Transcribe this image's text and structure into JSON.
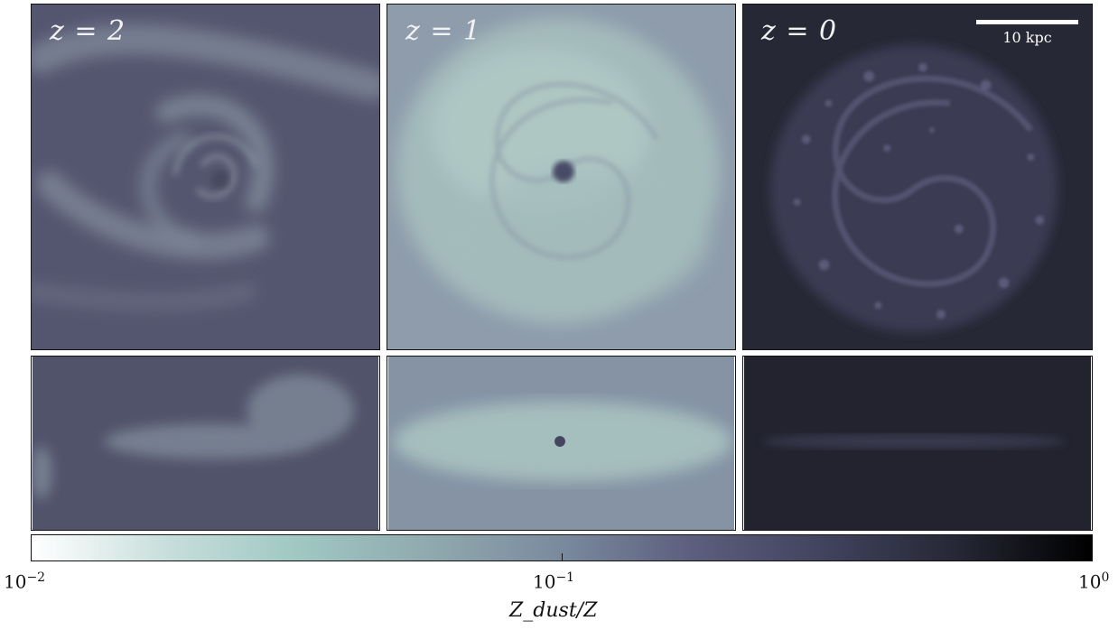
{
  "panels": {
    "z2_label": "z = 2",
    "z1_label": "z = 1",
    "z0_label": "z = 0"
  },
  "scalebar": {
    "label": "10 kpc"
  },
  "colorbar": {
    "tick_min": {
      "base": "10",
      "exp": "−2"
    },
    "tick_mid": {
      "base": "10",
      "exp": "−1"
    },
    "tick_max": {
      "base": "10",
      "exp": "0"
    },
    "label": "Z_dust/Z",
    "scale": "log",
    "range": [
      0.01,
      1
    ],
    "colormap": [
      "#ffffff",
      "#a0c8c3",
      "#7a8a9e",
      "#434460",
      "#000000"
    ]
  }
}
